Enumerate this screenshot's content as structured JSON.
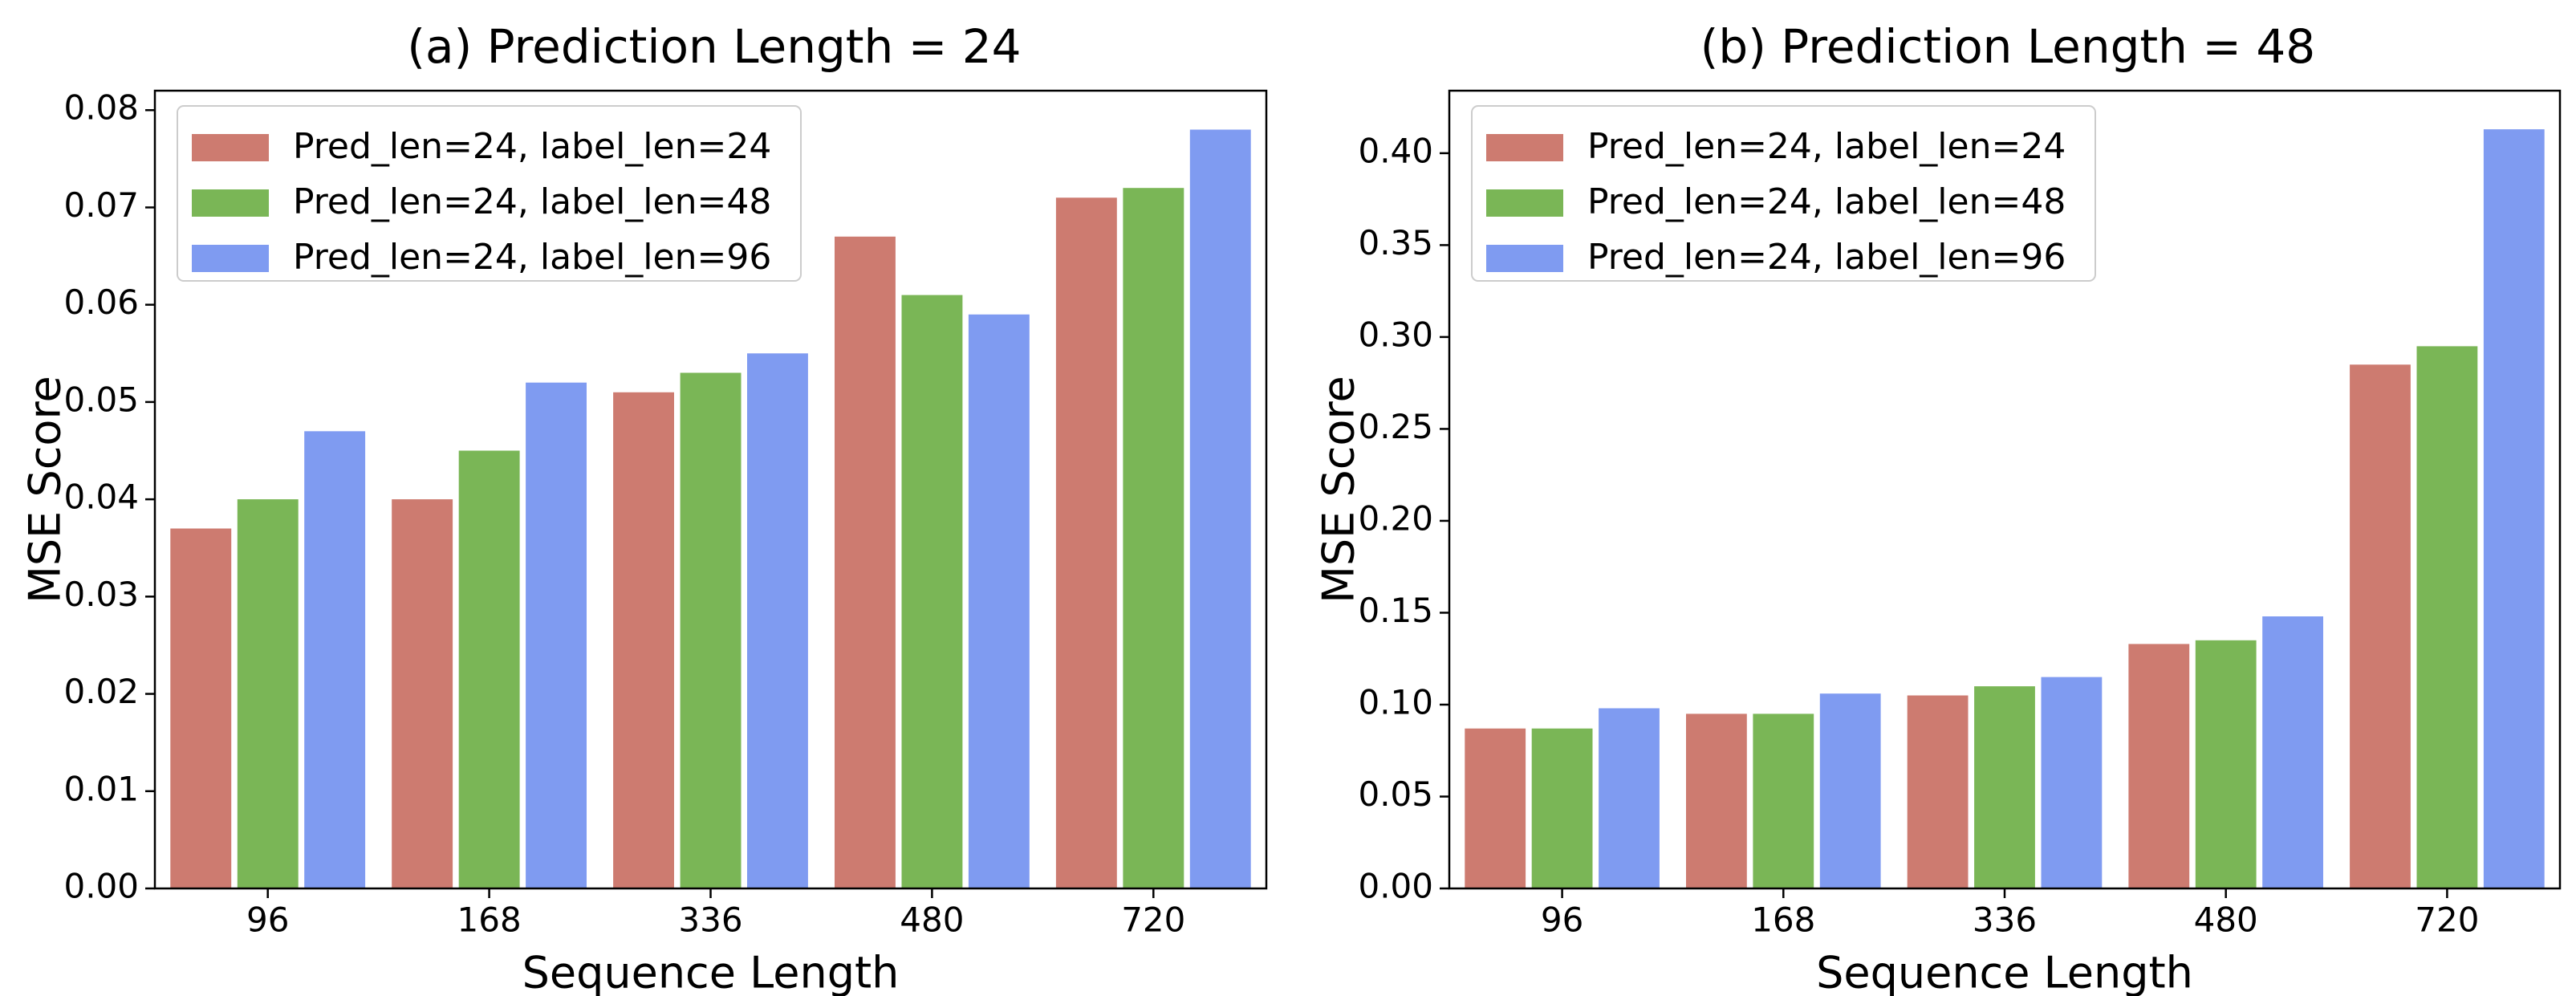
{
  "colors": {
    "series_1": "#CD7B70",
    "series_2": "#7AB656",
    "series_3": "#7F9BF1"
  },
  "chart_data": [
    {
      "type": "bar",
      "title": "(a) Prediction Length = 24",
      "xlabel": "Sequence Length",
      "ylabel": "MSE Score",
      "categories": [
        "96",
        "168",
        "336",
        "480",
        "720"
      ],
      "ylim": [
        0,
        0.082
      ],
      "yticks": [
        0.0,
        0.01,
        0.02,
        0.03,
        0.04,
        0.05,
        0.06,
        0.07,
        0.08
      ],
      "ytick_labels": [
        "0.00",
        "0.01",
        "0.02",
        "0.03",
        "0.04",
        "0.05",
        "0.06",
        "0.07",
        "0.08"
      ],
      "legend_position": "top-left",
      "series": [
        {
          "name": "Pred_len=24, label_len=24",
          "values": [
            0.037,
            0.04,
            0.051,
            0.067,
            0.071
          ]
        },
        {
          "name": "Pred_len=24, label_len=48",
          "values": [
            0.04,
            0.045,
            0.053,
            0.061,
            0.072
          ]
        },
        {
          "name": "Pred_len=24, label_len=96",
          "values": [
            0.047,
            0.052,
            0.055,
            0.059,
            0.078
          ]
        }
      ]
    },
    {
      "type": "bar",
      "title": "(b) Prediction Length = 48",
      "xlabel": "Sequence Length",
      "ylabel": "MSE Score",
      "categories": [
        "96",
        "168",
        "336",
        "480",
        "720"
      ],
      "ylim": [
        0,
        0.434
      ],
      "yticks": [
        0.0,
        0.05,
        0.1,
        0.15,
        0.2,
        0.25,
        0.3,
        0.35,
        0.4
      ],
      "ytick_labels": [
        "0.00",
        "0.05",
        "0.10",
        "0.15",
        "0.20",
        "0.25",
        "0.30",
        "0.35",
        "0.40"
      ],
      "legend_position": "top-left",
      "series": [
        {
          "name": "Pred_len=24, label_len=24",
          "values": [
            0.087,
            0.095,
            0.105,
            0.133,
            0.285
          ]
        },
        {
          "name": "Pred_len=24, label_len=48",
          "values": [
            0.087,
            0.095,
            0.11,
            0.135,
            0.295
          ]
        },
        {
          "name": "Pred_len=24, label_len=96",
          "values": [
            0.098,
            0.106,
            0.115,
            0.148,
            0.413
          ]
        }
      ]
    }
  ]
}
